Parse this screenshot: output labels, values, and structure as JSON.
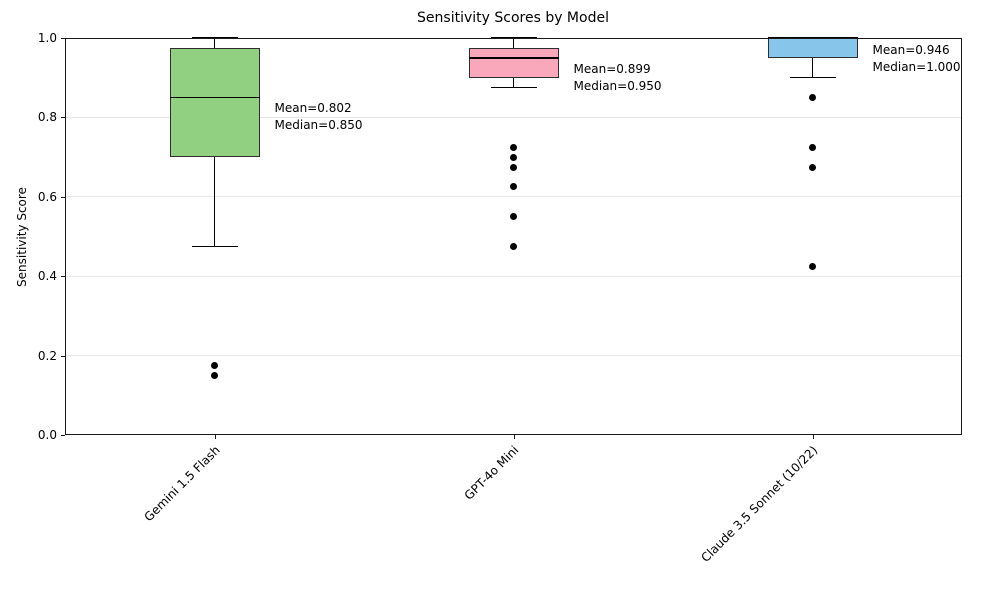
{
  "chart_data": {
    "type": "boxplot",
    "title": "Sensitivity Scores by Model",
    "ylabel": "Sensitivity Score",
    "xlabel": "",
    "ylim": [
      0.0,
      1.0
    ],
    "yticks": [
      0.0,
      0.2,
      0.4,
      0.6,
      0.8,
      1.0
    ],
    "grid": "horizontal",
    "legend": "none",
    "categories": [
      "Gemini 1.5 Flash",
      "GPT-4o Mini",
      "Claude 3.5 Sonnet (10/22)"
    ],
    "boxes": [
      {
        "label": "Gemini 1.5 Flash",
        "color": "#90D080",
        "q1": 0.7,
        "median": 0.85,
        "q3": 0.975,
        "whisker_low": 0.475,
        "whisker_high": 1.0,
        "outliers": [
          0.175,
          0.15
        ],
        "mean": 0.802,
        "annotation_lines": [
          "Mean=0.802",
          "Median=0.850"
        ]
      },
      {
        "label": "GPT-4o Mini",
        "color": "#F9A8BC",
        "q1": 0.9,
        "median": 0.95,
        "q3": 0.975,
        "whisker_low": 0.875,
        "whisker_high": 1.0,
        "outliers": [
          0.725,
          0.7,
          0.675,
          0.625,
          0.55,
          0.475
        ],
        "mean": 0.899,
        "annotation_lines": [
          "Mean=0.899",
          "Median=0.950"
        ]
      },
      {
        "label": "Claude 3.5 Sonnet (10/22)",
        "color": "#87C5EB",
        "q1": 0.95,
        "median": 1.0,
        "q3": 1.0,
        "whisker_low": 0.9,
        "whisker_high": 1.0,
        "outliers": [
          0.85,
          0.725,
          0.675,
          0.425
        ],
        "mean": 0.946,
        "annotation_lines": [
          "Mean=0.946",
          "Median=1.000"
        ]
      }
    ]
  }
}
